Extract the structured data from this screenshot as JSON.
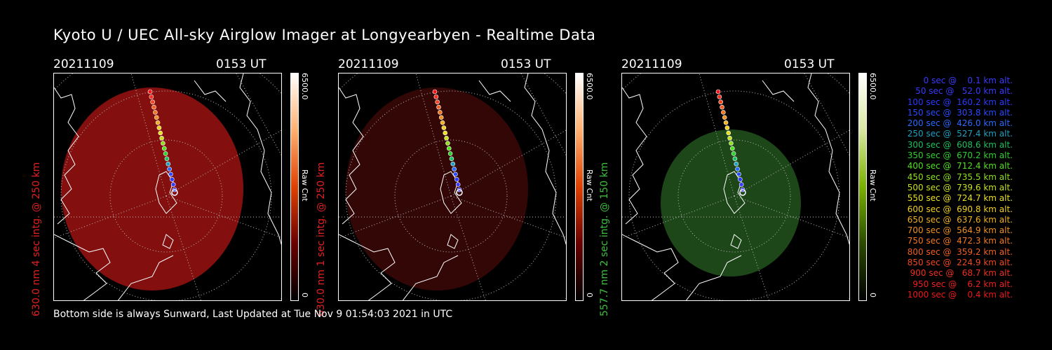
{
  "title": "Kyoto U / UEC All-sky Airglow Imager at Longyearbyen - Realtime Data",
  "footer": "Bottom side is always Sunward, Last Updated at Tue Nov  9 01:54:03 2021 in UTC",
  "panels": [
    {
      "date": "20211109",
      "ut": "0153 UT",
      "ylabel": "630.0 nm 4 sec intg. @ 250 km",
      "label_color": "#e02020",
      "cbar_max": "6500.0",
      "cbar_min": "0",
      "cbar_unit": "Raw Cnt",
      "glow_color": "#8a1010",
      "glow_opacity": 0.95,
      "colorbar": "red"
    },
    {
      "date": "20211109",
      "ut": "0153 UT",
      "ylabel": "630.0 nm 1 sec intg. @ 250 km",
      "label_color": "#e02020",
      "cbar_max": "6500.0",
      "cbar_min": "0",
      "cbar_unit": "Raw Cnt",
      "glow_color": "#3a0808",
      "glow_opacity": 0.9,
      "colorbar": "red"
    },
    {
      "date": "20211109",
      "ut": "0153 UT",
      "ylabel": "557.7 nm 2 sec intg. @ 150 km",
      "label_color": "#3ec03e",
      "cbar_max": "6500.0",
      "cbar_min": "0",
      "cbar_unit": "Raw Cnt",
      "glow_color": "#1f4a1a",
      "glow_opacity": 0.95,
      "colorbar": "green"
    }
  ],
  "legend": [
    {
      "text": "   0 sec @    0.1 km alt.",
      "color": "#3a3aff"
    },
    {
      "text": "  50 sec @   52.0 km alt.",
      "color": "#3a3aff"
    },
    {
      "text": " 100 sec @  160.2 km alt.",
      "color": "#2a3aff"
    },
    {
      "text": " 150 sec @  303.8 km alt.",
      "color": "#2a4aff"
    },
    {
      "text": " 200 sec @  426.0 km alt.",
      "color": "#2a6aff"
    },
    {
      "text": " 250 sec @  527.4 km alt.",
      "color": "#20a0c0"
    },
    {
      "text": " 300 sec @  608.6 km alt.",
      "color": "#20c060"
    },
    {
      "text": " 350 sec @  670.2 km alt.",
      "color": "#30d030"
    },
    {
      "text": " 400 sec @  712.4 km alt.",
      "color": "#50e020"
    },
    {
      "text": " 450 sec @  735.5 km alt.",
      "color": "#90e020"
    },
    {
      "text": " 500 sec @  739.6 km alt.",
      "color": "#c8e020"
    },
    {
      "text": " 550 sec @  724.7 km alt.",
      "color": "#e8e020"
    },
    {
      "text": " 600 sec @  690.8 km alt.",
      "color": "#f0d020"
    },
    {
      "text": " 650 sec @  637.6 km alt.",
      "color": "#f0b020"
    },
    {
      "text": " 700 sec @  564.9 km alt.",
      "color": "#f09020"
    },
    {
      "text": " 750 sec @  472.3 km alt.",
      "color": "#f07820"
    },
    {
      "text": " 800 sec @  359.2 km alt.",
      "color": "#f06020"
    },
    {
      "text": " 850 sec @  224.9 km alt.",
      "color": "#f04820"
    },
    {
      "text": " 900 sec @   68.7 km alt.",
      "color": "#f03020"
    },
    {
      "text": " 950 sec @    6.2 km alt.",
      "color": "#f02020"
    },
    {
      "text": "1000 sec @    0.4 km alt.",
      "color": "#f01818"
    }
  ],
  "track_colors": [
    "#f01818",
    "#f03020",
    "#f04820",
    "#f06020",
    "#f07820",
    "#f09020",
    "#f0b020",
    "#f0d020",
    "#e8e020",
    "#c8e020",
    "#90e020",
    "#50e020",
    "#30d030",
    "#20c060",
    "#20a0c0",
    "#2a6aff",
    "#2a4aff",
    "#2a3aff",
    "#3a3aff",
    "#3a3aff"
  ]
}
